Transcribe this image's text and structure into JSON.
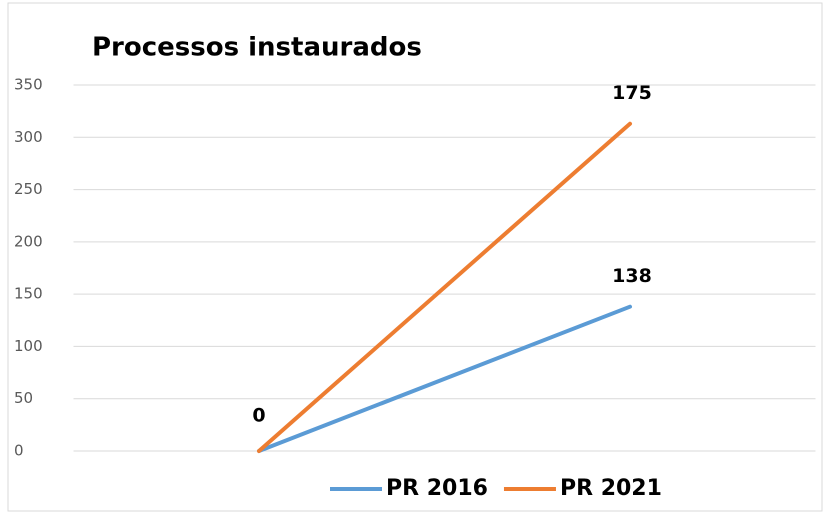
{
  "chart_data": {
    "type": "line",
    "stacked": true,
    "title": "Processos instaurados",
    "categories": [
      null,
      null
    ],
    "series": [
      {
        "name": "PR 2016",
        "color": "#5b9bd5",
        "values": [
          0,
          138
        ]
      },
      {
        "name": "PR 2021",
        "color": "#ed7d31",
        "values": [
          0,
          175
        ]
      }
    ],
    "ylim": [
      0,
      350
    ],
    "yticks": [
      0,
      50,
      100,
      150,
      200,
      250,
      300,
      350
    ],
    "grid": true,
    "legend": "bottom"
  }
}
